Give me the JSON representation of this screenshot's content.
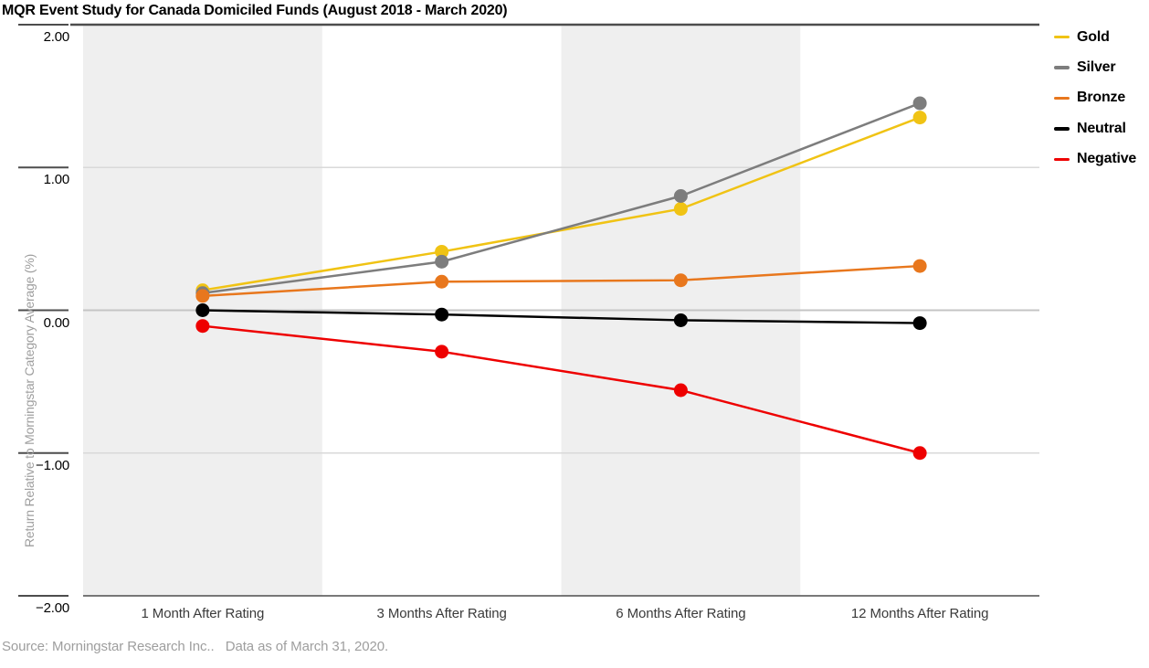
{
  "chart_data": {
    "type": "line",
    "title": "MQR Event Study for Canada Domiciled Funds (August 2018 - March 2020)",
    "categories": [
      "1 Month After Rating",
      "3 Months After Rating",
      "6 Months After Rating",
      "12 Months After Rating"
    ],
    "series": [
      {
        "name": "Gold",
        "color": "#F0C314",
        "values": [
          0.14,
          0.41,
          0.71,
          1.35
        ]
      },
      {
        "name": "Silver",
        "color": "#7D7D7D",
        "values": [
          0.12,
          0.34,
          0.8,
          1.45
        ]
      },
      {
        "name": "Bronze",
        "color": "#E8771D",
        "values": [
          0.1,
          0.2,
          0.21,
          0.31
        ]
      },
      {
        "name": "Neutral",
        "color": "#000000",
        "values": [
          0.0,
          -0.03,
          -0.07,
          -0.09
        ]
      },
      {
        "name": "Negative",
        "color": "#EE0000",
        "values": [
          -0.11,
          -0.29,
          -0.56,
          -1.0
        ]
      }
    ],
    "ylabel": "Return Relative to Morningstar Category Average (%)",
    "xlabel": "",
    "ylim": [
      -2,
      2
    ],
    "yticks": [
      {
        "label": "2.00",
        "value": 2
      },
      {
        "label": "1.00",
        "value": 1
      },
      {
        "label": "0.00",
        "value": 0
      },
      {
        "label": "−1.00",
        "value": -1
      },
      {
        "label": "−2.00",
        "value": -2
      }
    ],
    "grid": "horizontal gridlines on",
    "legend_position": "top-right",
    "shaded_columns": [
      0,
      2
    ],
    "band_color": "#EFEFEF",
    "source_note": "Source: Morningstar Research Inc..   Data as of March 31, 2020."
  }
}
